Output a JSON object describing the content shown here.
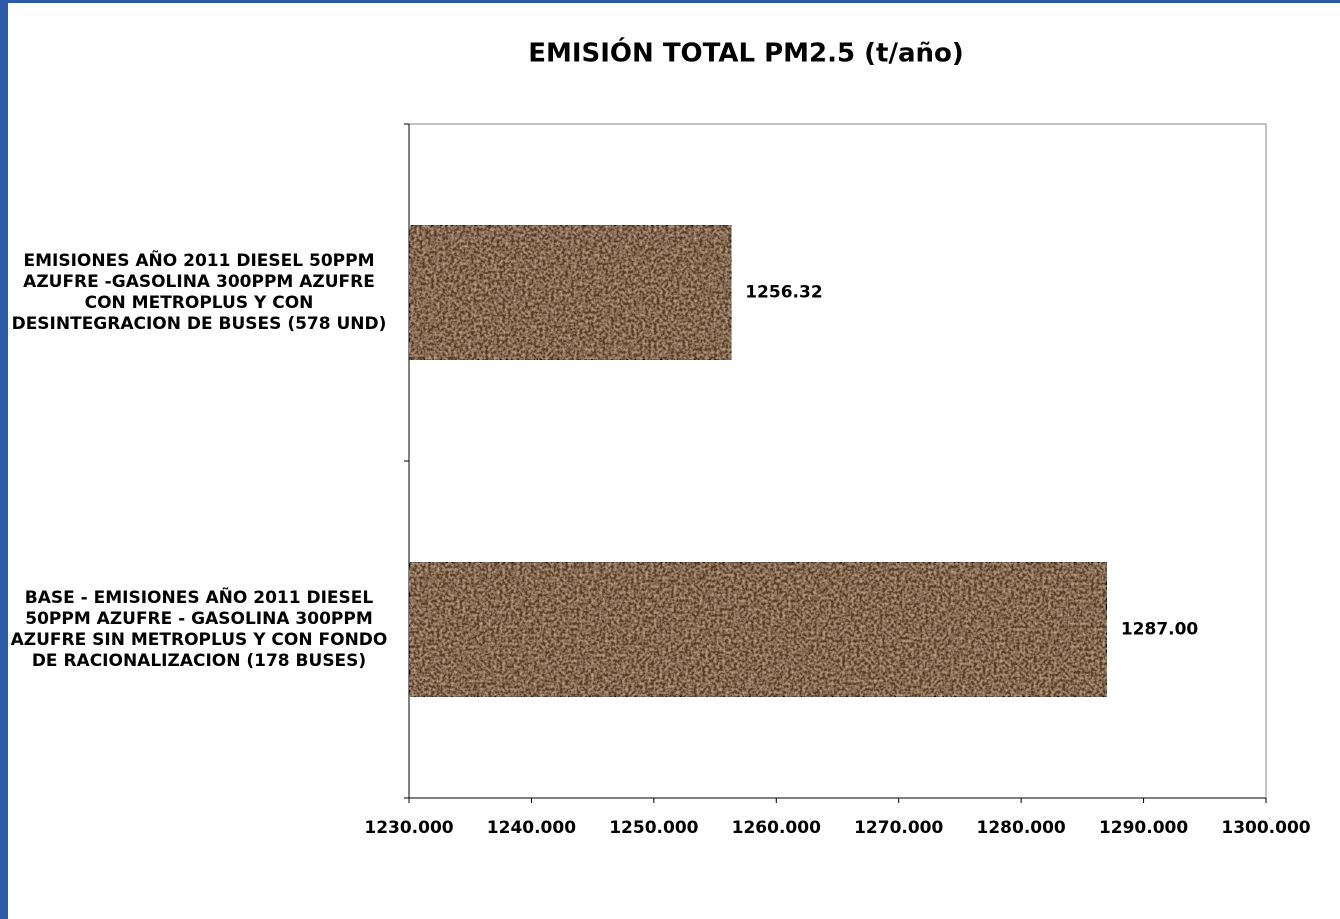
{
  "chart_data": {
    "type": "hbar",
    "title": "EMISIÓN TOTAL  PM2.5 (t/año)",
    "categories": [
      "EMISIONES AÑO 2011 DIESEL 50PPM AZUFRE -GASOLINA 300PPM AZUFRE CON METROPLUS Y CON DESINTEGRACION DE BUSES (578 UND)",
      "BASE - EMISIONES AÑO 2011 DIESEL 50PPM AZUFRE - GASOLINA 300PPM AZUFRE SIN METROPLUS Y CON FONDO DE RACIONALIZACION (178 BUSES)"
    ],
    "values": [
      1256.32,
      1287.0
    ],
    "value_labels": [
      "1256.32",
      "1287.00"
    ],
    "color": "#5a3a24",
    "xlim": [
      1230,
      1300
    ],
    "xticks": [
      {
        "value": 1230,
        "label": "1230.000"
      },
      {
        "value": 1240,
        "label": "1240.000"
      },
      {
        "value": 1250,
        "label": "1250.000"
      },
      {
        "value": 1260,
        "label": "1260.000"
      },
      {
        "value": 1270,
        "label": "1270.000"
      },
      {
        "value": 1280,
        "label": "1280.000"
      },
      {
        "value": 1290,
        "label": "1290.000"
      },
      {
        "value": 1300,
        "label": "1300.000"
      }
    ]
  }
}
